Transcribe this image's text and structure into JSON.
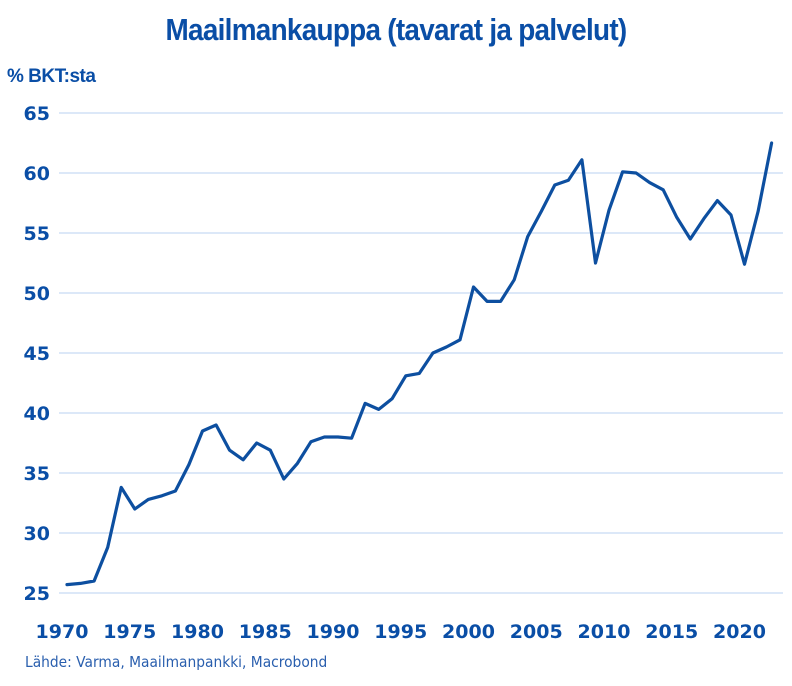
{
  "title": "Maailmankauppa (tavarat ja palvelut)",
  "y_unit_label": "% BKT:sta",
  "source": "Lähde: Varma, Maailmanpankki, Macrobond",
  "colors": {
    "line": "#0d4fa0",
    "text": "#0a4ea6",
    "grid": "#dce8f8"
  },
  "chart_data": {
    "type": "line",
    "title": "Maailmankauppa (tavarat ja palvelut)",
    "xlabel": "",
    "ylabel": "% BKT:sta",
    "ylim": [
      25,
      65
    ],
    "yticks": [
      25,
      30,
      35,
      40,
      45,
      50,
      55,
      60,
      65
    ],
    "xticks": [
      1970,
      1975,
      1980,
      1985,
      1990,
      1995,
      2000,
      2005,
      2010,
      2015,
      2020
    ],
    "grid": true,
    "legend": "none",
    "x": [
      1970,
      1971,
      1972,
      1973,
      1974,
      1975,
      1976,
      1977,
      1978,
      1979,
      1980,
      1981,
      1982,
      1983,
      1984,
      1985,
      1986,
      1987,
      1988,
      1989,
      1990,
      1991,
      1992,
      1993,
      1994,
      1995,
      1996,
      1997,
      1998,
      1999,
      2000,
      2001,
      2002,
      2003,
      2004,
      2005,
      2006,
      2007,
      2008,
      2009,
      2010,
      2011,
      2012,
      2013,
      2014,
      2015,
      2016,
      2017,
      2018,
      2019,
      2020,
      2021,
      2022
    ],
    "series": [
      {
        "name": "Maailmankauppa, % BKT:sta",
        "values": [
          25.7,
          25.8,
          26.0,
          28.8,
          33.8,
          32.0,
          32.8,
          33.1,
          33.5,
          35.7,
          38.5,
          39.0,
          36.9,
          36.1,
          37.5,
          36.9,
          34.5,
          35.8,
          37.6,
          38.0,
          38.0,
          37.9,
          40.8,
          40.3,
          41.2,
          43.1,
          43.3,
          45.0,
          45.5,
          46.1,
          50.5,
          49.3,
          49.3,
          51.1,
          54.7,
          56.8,
          59.0,
          59.4,
          61.1,
          52.5,
          56.9,
          60.1,
          60.0,
          59.2,
          58.6,
          56.3,
          54.5,
          56.2,
          57.7,
          56.5,
          52.4,
          56.8,
          62.5
        ]
      }
    ]
  }
}
